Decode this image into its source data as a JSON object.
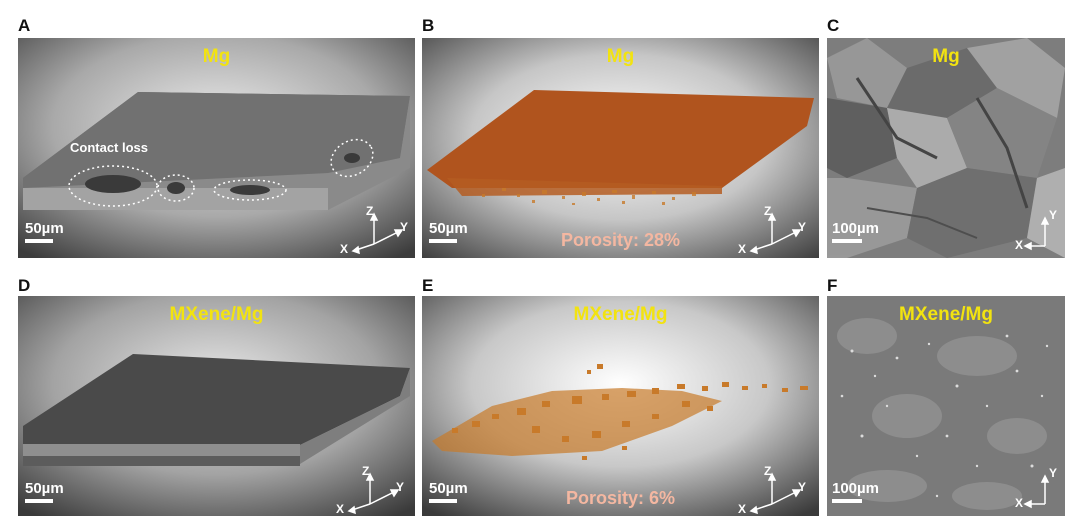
{
  "panels": {
    "A": {
      "letter": "A",
      "material": "Mg",
      "annotation": "Contact loss",
      "scale": "50µm",
      "axes": [
        "Z",
        "X",
        "Y"
      ]
    },
    "B": {
      "letter": "B",
      "material": "Mg",
      "porosity": "Porosity: 28%",
      "scale": "50µm",
      "axes": [
        "Z",
        "X",
        "Y"
      ]
    },
    "C": {
      "letter": "C",
      "material": "Mg",
      "scale": "100µm",
      "axes": [
        "Y",
        "X"
      ]
    },
    "D": {
      "letter": "D",
      "material": "MXene/Mg",
      "scale": "50µm",
      "axes": [
        "Z",
        "X",
        "Y"
      ]
    },
    "E": {
      "letter": "E",
      "material": "MXene/Mg",
      "porosity": "Porosity: 6%",
      "scale": "50µm",
      "axes": [
        "Z",
        "X",
        "Y"
      ]
    },
    "F": {
      "letter": "F",
      "material": "MXene/Mg",
      "scale": "100µm",
      "axes": [
        "Y",
        "X"
      ]
    }
  },
  "colors": {
    "label_yellow": "#f2e310",
    "porosity_pink": "#f4b7a1",
    "pore_orange_dense": "#b0541e",
    "pore_orange_sparse": "#c87a2a"
  }
}
